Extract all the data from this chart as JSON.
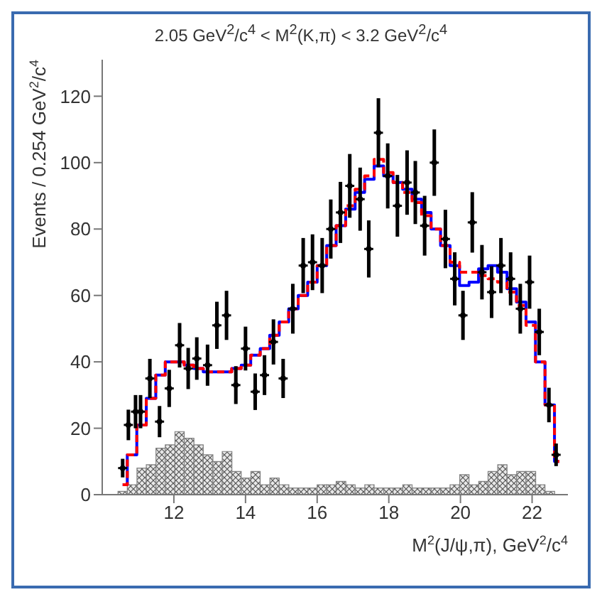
{
  "chart_data": {
    "type": "scatter",
    "title": "2.05 GeV$^{2}$/c$^{4}$ < M$^{2}$(K,π) < 3.2 GeV$^{2}$/c$^{4}$",
    "xlabel": "M$^{2}$(J/ψ,π), GeV$^{2}$/c$^{4}$",
    "ylabel": "Events / 0.254 GeV$^{2}$/c$^{4}$",
    "xlim": [
      10,
      23
    ],
    "xticks": [
      12,
      14,
      16,
      18,
      20,
      22
    ],
    "ylim": [
      0,
      131
    ],
    "yticks": [
      0,
      20,
      40,
      60,
      80,
      100,
      120
    ],
    "series": [
      {
        "type": "histogram",
        "color": "#808080",
        "bins": [
          10.44,
          10.7,
          10.97,
          11.23,
          11.5,
          11.76,
          12.03,
          12.29,
          12.56,
          12.82,
          13.09,
          13.35,
          13.62,
          13.88,
          14.15,
          14.41,
          14.68,
          14.94,
          15.21,
          15.47,
          15.74,
          16.0,
          16.27,
          16.53,
          16.8,
          17.06,
          17.33,
          17.59,
          17.86,
          18.12,
          18.39,
          18.65,
          18.92,
          19.18,
          19.45,
          19.71,
          19.98,
          20.24,
          20.51,
          20.77,
          21.04,
          21.3,
          21.57,
          21.83,
          22.1,
          22.36,
          22.63
        ],
        "values": [
          1,
          3,
          8,
          9,
          14,
          15,
          19,
          17,
          15,
          12,
          10,
          13,
          7,
          5,
          7,
          3,
          5,
          3,
          2,
          2,
          2,
          3,
          3,
          4,
          3,
          2,
          3,
          2,
          2,
          2,
          3,
          2,
          2,
          2,
          2,
          3,
          6,
          3,
          4,
          7,
          9,
          6,
          7,
          7,
          3,
          1
        ]
      },
      {
        "type": "step",
        "color": "#0000ff",
        "line_style": "solid",
        "x": [
          10.57,
          10.83,
          11.1,
          11.36,
          11.63,
          11.89,
          12.16,
          12.42,
          12.69,
          12.95,
          13.22,
          13.48,
          13.75,
          14.01,
          14.28,
          14.54,
          14.81,
          15.07,
          15.34,
          15.6,
          15.87,
          16.13,
          16.4,
          16.66,
          16.93,
          17.19,
          17.46,
          17.72,
          17.99,
          18.25,
          18.52,
          18.78,
          19.05,
          19.31,
          19.58,
          19.84,
          20.11,
          20.37,
          20.64,
          20.9,
          21.17,
          21.43,
          21.7,
          21.96,
          22.23,
          22.49,
          22.76
        ],
        "values": [
          3,
          12,
          21,
          29,
          36,
          40,
          40,
          39,
          38,
          37,
          37,
          37,
          38,
          39,
          42,
          44,
          48,
          52,
          56,
          60,
          64,
          69,
          75,
          81,
          86,
          91,
          95,
          99,
          96,
          94,
          92,
          89,
          85,
          80,
          75,
          69,
          63,
          64,
          68,
          69,
          67,
          62,
          58,
          52,
          40,
          27,
          10
        ]
      },
      {
        "type": "step",
        "color": "#ff0000",
        "line_style": "dashed",
        "x": [
          10.57,
          10.83,
          11.1,
          11.36,
          11.63,
          11.89,
          12.16,
          12.42,
          12.69,
          12.95,
          13.22,
          13.48,
          13.75,
          14.01,
          14.28,
          14.54,
          14.81,
          15.07,
          15.34,
          15.6,
          15.87,
          16.13,
          16.4,
          16.66,
          16.93,
          17.19,
          17.46,
          17.72,
          17.99,
          18.25,
          18.52,
          18.78,
          19.05,
          19.31,
          19.58,
          19.84,
          20.11,
          20.37,
          20.64,
          20.9,
          21.17,
          21.43,
          21.7,
          21.96,
          22.23,
          22.49,
          22.76
        ],
        "values": [
          3,
          12,
          21,
          29,
          36,
          40,
          40,
          39,
          38,
          37,
          37,
          37,
          38,
          39,
          42,
          44,
          48,
          52,
          56,
          60,
          64,
          69,
          75,
          81,
          87,
          92,
          96,
          101,
          97,
          94,
          91,
          88,
          84,
          80,
          75,
          70,
          67,
          67,
          66,
          65,
          64,
          61,
          57,
          51,
          40,
          27,
          10
        ]
      },
      {
        "color": "#000000",
        "marker": "circle",
        "x": [
          10.57,
          10.73,
          10.93,
          11.07,
          11.33,
          11.6,
          11.87,
          12.16,
          12.4,
          12.64,
          12.94,
          13.2,
          13.47,
          13.73,
          14.0,
          14.27,
          14.53,
          14.78,
          15.05,
          15.32,
          15.61,
          15.87,
          16.14,
          16.38,
          16.65,
          16.91,
          17.2,
          17.44,
          17.71,
          17.97,
          18.24,
          18.51,
          18.74,
          19.0,
          19.27,
          19.58,
          19.84,
          20.07,
          20.33,
          20.6,
          20.87,
          21.13,
          21.4,
          21.67,
          21.93,
          22.2,
          22.47,
          22.67
        ],
        "values": [
          8,
          21,
          25,
          25,
          35,
          22,
          32,
          45,
          38,
          41,
          39,
          51,
          54,
          33,
          44,
          31,
          36,
          46,
          35,
          56,
          69,
          70,
          69,
          80,
          85,
          93,
          89,
          74,
          109,
          96,
          87,
          94,
          91,
          81,
          100,
          77,
          65,
          54,
          82,
          67,
          61,
          69,
          65,
          56,
          64,
          49,
          27,
          12
        ],
        "errors": [
          2.8,
          4.6,
          5.0,
          5.0,
          5.9,
          4.7,
          5.6,
          6.7,
          6.2,
          6.4,
          6.2,
          7.1,
          7.4,
          5.7,
          6.6,
          5.5,
          6.0,
          6.8,
          5.9,
          7.5,
          8.3,
          8.4,
          8.3,
          8.9,
          9.2,
          9.6,
          9.5,
          8.6,
          10.4,
          9.8,
          9.3,
          9.7,
          9.5,
          9.0,
          10.0,
          8.8,
          8.0,
          7.4,
          9.1,
          8.2,
          7.8,
          8.3,
          8.0,
          7.5,
          8.0,
          7.0,
          5.2,
          3.4
        ],
        "xerrors": [
          0.127,
          0.127,
          0.127,
          0.127,
          0.127,
          0.127,
          0.127,
          0.127,
          0.127,
          0.127,
          0.127,
          0.127,
          0.127,
          0.127,
          0.127,
          0.127,
          0.127,
          0.127,
          0.127,
          0.127,
          0.127,
          0.127,
          0.127,
          0.127,
          0.127,
          0.127,
          0.127,
          0.127,
          0.127,
          0.127,
          0.127,
          0.127,
          0.127,
          0.127,
          0.127,
          0.127,
          0.127,
          0.127,
          0.127,
          0.127,
          0.127,
          0.127,
          0.127,
          0.127,
          0.127,
          0.127,
          0.127,
          0.127
        ]
      }
    ]
  }
}
